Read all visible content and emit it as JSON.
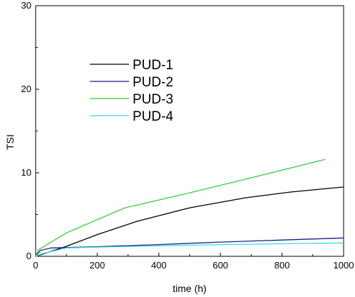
{
  "chart_data": {
    "type": "line",
    "title": "",
    "xlabel": "time (h)",
    "ylabel": "TSI",
    "xlim": [
      0,
      1000
    ],
    "ylim": [
      0,
      30
    ],
    "xticks": [
      0,
      200,
      400,
      600,
      800,
      1000
    ],
    "yticks": [
      0,
      10,
      20,
      30
    ],
    "grid": false,
    "legend_position": "top-left",
    "series": [
      {
        "name": "PUD-1",
        "color": "#000000",
        "x": [
          0,
          10,
          100,
          200,
          330,
          500,
          680,
          830,
          1000
        ],
        "y": [
          0,
          0.1,
          1.2,
          2.6,
          4.2,
          5.8,
          7.0,
          7.7,
          8.3
        ]
      },
      {
        "name": "PUD-2",
        "color": "#1c1c8c",
        "x": [
          0,
          15,
          50,
          200,
          400,
          600,
          800,
          1000
        ],
        "y": [
          0,
          0.7,
          1.0,
          1.15,
          1.4,
          1.7,
          1.95,
          2.2
        ]
      },
      {
        "name": "PUD-3",
        "color": "#3ccc3c",
        "x": [
          0,
          10,
          100,
          150,
          290,
          500,
          700,
          940
        ],
        "y": [
          0,
          0.8,
          2.8,
          3.6,
          5.8,
          7.6,
          9.4,
          11.6
        ]
      },
      {
        "name": "PUD-4",
        "color": "#33e0e0",
        "x": [
          0,
          20,
          100,
          200,
          400,
          600,
          800,
          1000
        ],
        "y": [
          0,
          0.3,
          1.0,
          1.1,
          1.25,
          1.4,
          1.5,
          1.6
        ]
      }
    ]
  }
}
